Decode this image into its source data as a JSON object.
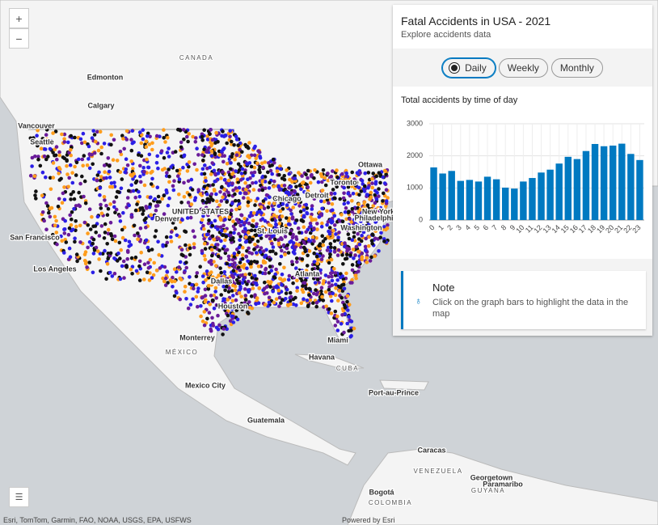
{
  "panel": {
    "title": "Fatal Accidents in USA - 2021",
    "subtitle": "Explore accidents data",
    "toggles": [
      "Daily",
      "Weekly",
      "Monthly"
    ],
    "chart": {
      "type": "bar",
      "title": "Total accidents by time of day",
      "color": "#0079c1",
      "categories": [
        "0",
        "1",
        "2",
        "3",
        "4",
        "5",
        "6",
        "7",
        "8",
        "9",
        "10",
        "11",
        "12",
        "13",
        "14",
        "15",
        "16",
        "17",
        "18",
        "19",
        "20",
        "21",
        "22",
        "23"
      ],
      "values": [
        1640,
        1450,
        1530,
        1220,
        1250,
        1200,
        1350,
        1270,
        1010,
        980,
        1200,
        1310,
        1480,
        1570,
        1760,
        1970,
        1900,
        2150,
        2370,
        2300,
        2320,
        2380,
        2060,
        1870
      ],
      "ylim": [
        0,
        3000
      ],
      "yticks": [
        0,
        1000,
        2000,
        3000
      ],
      "grid": true
    },
    "note": {
      "title": "Note",
      "text": "Click on the graph bars to highlight the data in the map"
    }
  },
  "map": {
    "zoom": [
      "+",
      "−"
    ],
    "labels": [
      "CANADA",
      "Edmonton",
      "Calgary",
      "Vancouver",
      "Seattle",
      "Ottawa",
      "Toronto",
      "Chicago",
      "Detroit",
      "New York",
      "Philadelphia",
      "Washington",
      "Denver",
      "UNITED STATES",
      "St. Louis",
      "San Francisco",
      "Los Angeles",
      "Dallas",
      "Atlanta",
      "Houston",
      "Monterrey",
      "MÉXICO",
      "Miami",
      "Havana",
      "CUBA",
      "Mexico City",
      "Port-au-Prince",
      "Guatemala",
      "Caracas",
      "VENEZUELA",
      "Georgetown",
      "Paramaribo",
      "GUYANA",
      "Bogotá",
      "COLOMBIA"
    ],
    "attribution": "Esri, TomTom, Garmin, FAO, NOAA, USGS, EPA, USFWS",
    "powered": "Powered by Esri"
  }
}
